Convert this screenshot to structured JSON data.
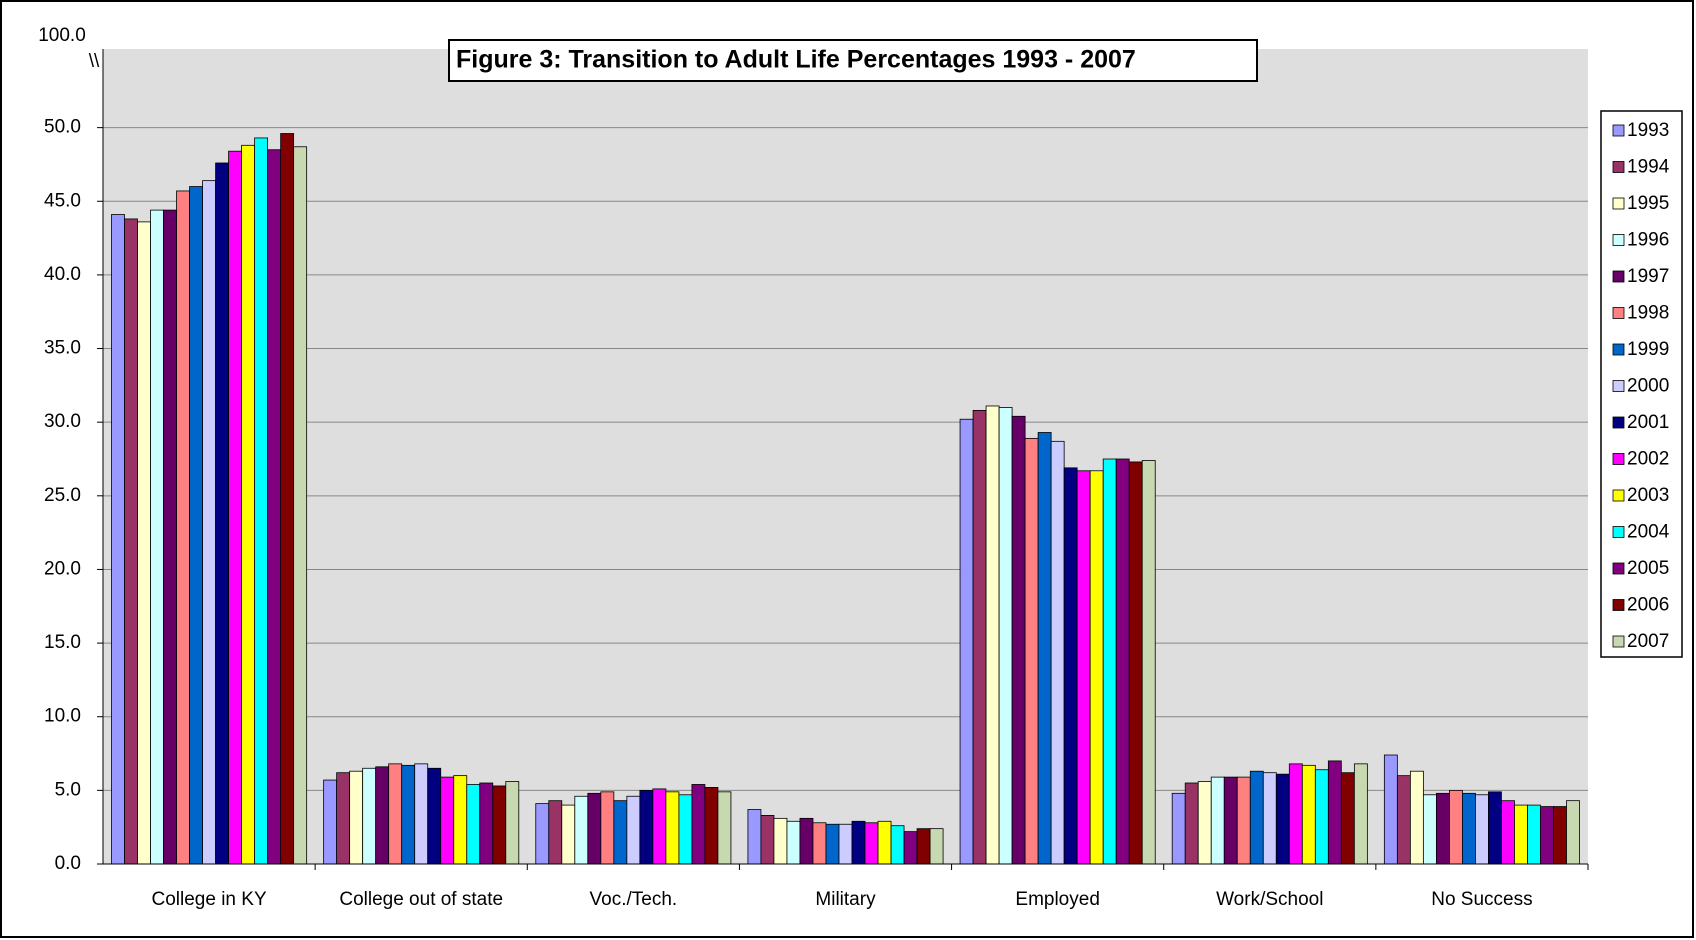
{
  "chart_data": {
    "type": "bar",
    "title": "Figure 3:  Transition to Adult Life Percentages 1993 - 2007",
    "categories": [
      "College in KY",
      "College out of state",
      "Voc./Tech.",
      "Military",
      "Employed",
      "Work/School",
      "No Success"
    ],
    "series": [
      {
        "name": "1993",
        "color": "#9999ff",
        "values": [
          44.1,
          5.7,
          4.1,
          3.7,
          30.2,
          4.8,
          7.4
        ]
      },
      {
        "name": "1994",
        "color": "#993366",
        "values": [
          43.8,
          6.2,
          4.3,
          3.3,
          30.8,
          5.5,
          6.0
        ]
      },
      {
        "name": "1995",
        "color": "#ffffcc",
        "values": [
          43.6,
          6.3,
          4.0,
          3.1,
          31.1,
          5.6,
          6.3
        ]
      },
      {
        "name": "1996",
        "color": "#ccffff",
        "values": [
          44.4,
          6.5,
          4.6,
          2.9,
          31.0,
          5.9,
          4.7
        ]
      },
      {
        "name": "1997",
        "color": "#660066",
        "values": [
          44.4,
          6.6,
          4.8,
          3.1,
          30.4,
          5.9,
          4.8
        ]
      },
      {
        "name": "1998",
        "color": "#ff8080",
        "values": [
          45.7,
          6.8,
          4.9,
          2.8,
          28.9,
          5.9,
          5.0
        ]
      },
      {
        "name": "1999",
        "color": "#0066cc",
        "values": [
          46.0,
          6.7,
          4.3,
          2.7,
          29.3,
          6.3,
          4.8
        ]
      },
      {
        "name": "2000",
        "color": "#ccccff",
        "values": [
          46.4,
          6.8,
          4.6,
          2.7,
          28.7,
          6.2,
          4.7
        ]
      },
      {
        "name": "2001",
        "color": "#000080",
        "values": [
          47.6,
          6.5,
          5.0,
          2.9,
          26.9,
          6.1,
          4.9
        ]
      },
      {
        "name": "2002",
        "color": "#ff00ff",
        "values": [
          48.4,
          5.9,
          5.1,
          2.8,
          26.7,
          6.8,
          4.3
        ]
      },
      {
        "name": "2003",
        "color": "#ffff00",
        "values": [
          48.8,
          6.0,
          4.9,
          2.9,
          26.7,
          6.7,
          4.0
        ]
      },
      {
        "name": "2004",
        "color": "#00ffff",
        "values": [
          49.3,
          5.4,
          4.7,
          2.6,
          27.5,
          6.4,
          4.0
        ]
      },
      {
        "name": "2005",
        "color": "#800080",
        "values": [
          48.5,
          5.5,
          5.4,
          2.2,
          27.5,
          7.0,
          3.9
        ]
      },
      {
        "name": "2006",
        "color": "#800000",
        "values": [
          49.6,
          5.3,
          5.2,
          2.4,
          27.3,
          6.2,
          3.9
        ]
      },
      {
        "name": "2007",
        "color": "#c8d8b0",
        "values": [
          48.7,
          5.6,
          4.9,
          2.4,
          27.4,
          6.8,
          4.3
        ]
      }
    ],
    "ylim": [
      0,
      50
    ],
    "yticks": [
      {
        "value": 0,
        "label": "0.0"
      },
      {
        "value": 5,
        "label": "5.0"
      },
      {
        "value": 10,
        "label": "10.0"
      },
      {
        "value": 15,
        "label": "15.0"
      },
      {
        "value": 20,
        "label": "20.0"
      },
      {
        "value": 25,
        "label": "25.0"
      },
      {
        "value": 30,
        "label": "30.0"
      },
      {
        "value": 35,
        "label": "35.0"
      },
      {
        "value": 40,
        "label": "40.0"
      },
      {
        "value": 45,
        "label": "45.0"
      },
      {
        "value": 50,
        "label": "50.0"
      }
    ],
    "axis_top_tick": {
      "value": 100,
      "label": "100.0"
    },
    "axis_break": "\\\\",
    "grid": true,
    "legend": "right"
  }
}
